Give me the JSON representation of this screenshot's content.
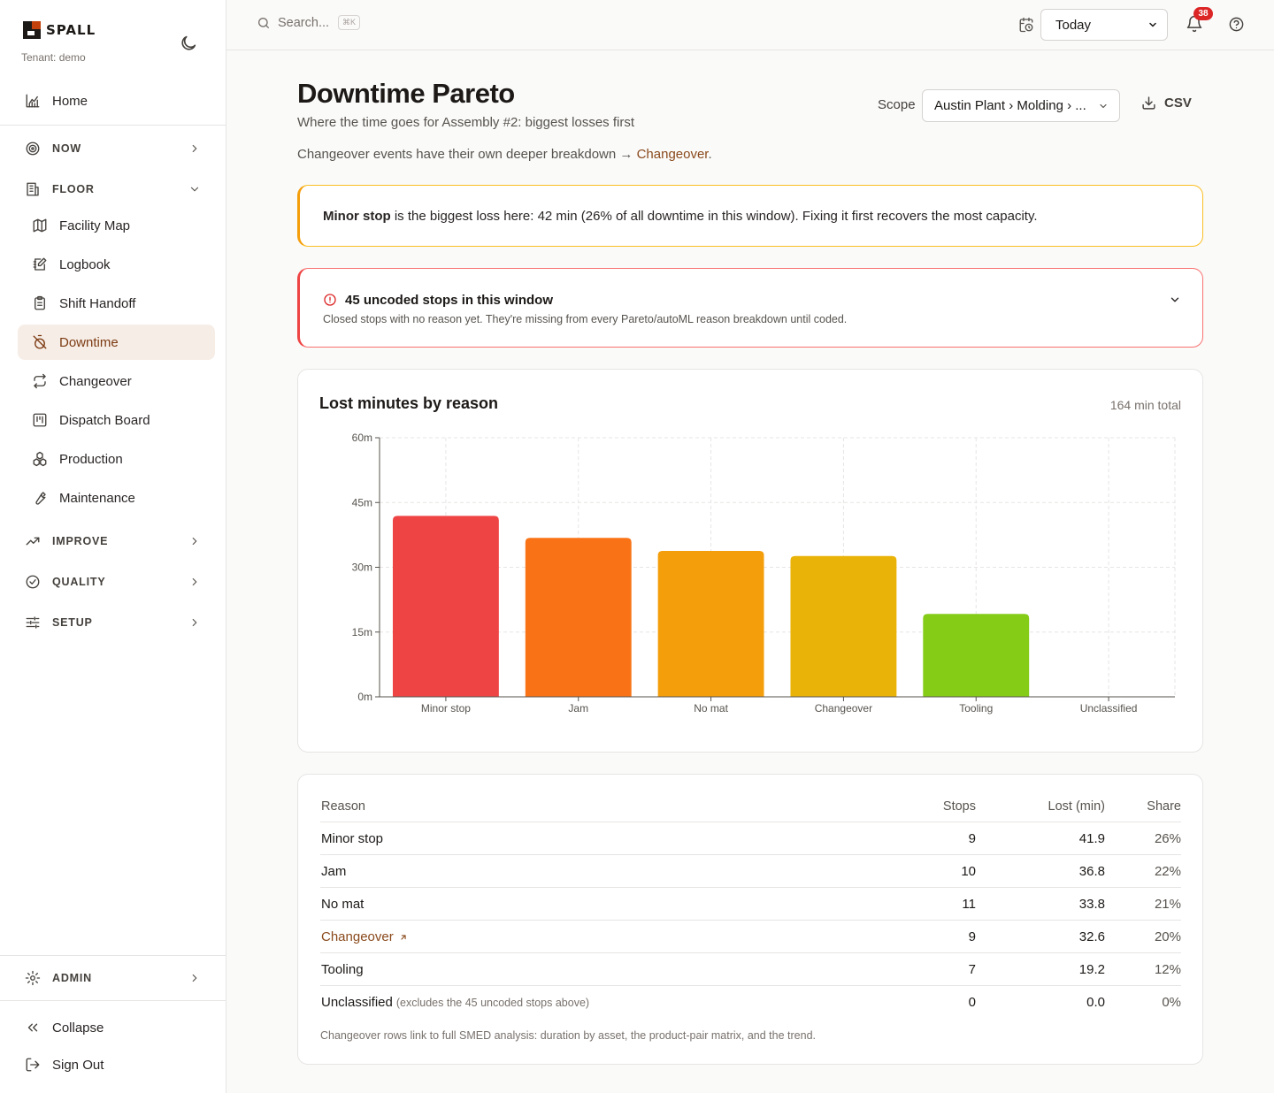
{
  "brand": {
    "name": "SPALL",
    "tenant": "Tenant: demo"
  },
  "sidebar": {
    "home": "Home",
    "groups": {
      "now": "NOW",
      "floor": "FLOOR",
      "improve": "IMPROVE",
      "quality": "QUALITY",
      "setup": "SETUP",
      "admin": "ADMIN"
    },
    "floor_items": [
      "Facility Map",
      "Logbook",
      "Shift Handoff",
      "Downtime",
      "Changeover",
      "Dispatch Board",
      "Production",
      "Maintenance"
    ],
    "active": "Downtime",
    "collapse": "Collapse",
    "sign_out": "Sign Out"
  },
  "topbar": {
    "search_placeholder": "Search...",
    "search_shortcut": "⌘K",
    "range": "Today",
    "notifications": "38"
  },
  "header": {
    "title": "Downtime Pareto",
    "subtitle": "Where the time goes for Assembly #2: biggest losses first",
    "note_prefix": "Changeover events have their own deeper breakdown → ",
    "note_link": "Changeover",
    "note_suffix": ".",
    "scope_label": "Scope",
    "scope_value": "Austin Plant › Molding › ...",
    "csv_label": "CSV"
  },
  "insight": {
    "bold": "Minor stop",
    "text": " is the biggest loss here: 42 min (26% of all downtime in this window). Fixing it first recovers the most capacity."
  },
  "alert": {
    "title": "45 uncoded stops in this window",
    "desc": "Closed stops with no reason yet. They're missing from every Pareto/autoML reason breakdown until coded."
  },
  "chart": {
    "title": "Lost minutes by reason",
    "total": "164 min total"
  },
  "chart_data": {
    "type": "bar",
    "categories": [
      "Minor stop",
      "Jam",
      "No mat",
      "Changeover",
      "Tooling",
      "Unclassified"
    ],
    "values": [
      41.9,
      36.8,
      33.8,
      32.6,
      19.2,
      0
    ],
    "colors": [
      "#ef4444",
      "#f97316",
      "#f59e0b",
      "#eab308",
      "#84cc16",
      "#22c55e"
    ],
    "ylim": [
      0,
      60
    ],
    "yticks": [
      0,
      15,
      30,
      45,
      60
    ],
    "ytick_labels": [
      "0m",
      "15m",
      "30m",
      "45m",
      "60m"
    ],
    "grid": true
  },
  "table": {
    "headers": {
      "reason": "Reason",
      "stops": "Stops",
      "lost": "Lost (min)",
      "share": "Share"
    },
    "rows": [
      {
        "reason": "Minor stop",
        "stops": "9",
        "lost": "41.9",
        "share": "26%"
      },
      {
        "reason": "Jam",
        "stops": "10",
        "lost": "36.8",
        "share": "22%"
      },
      {
        "reason": "No mat",
        "stops": "11",
        "lost": "33.8",
        "share": "21%"
      },
      {
        "reason": "Changeover",
        "stops": "9",
        "lost": "32.6",
        "share": "20%"
      },
      {
        "reason": "Tooling",
        "stops": "7",
        "lost": "19.2",
        "share": "12%"
      },
      {
        "reason": "Unclassified",
        "note": "(excludes the 45 uncoded stops above)",
        "stops": "0",
        "lost": "0.0",
        "share": "0%"
      }
    ],
    "footnote": "Changeover rows link to full SMED analysis: duration by asset, the product-pair matrix, and the trend."
  }
}
